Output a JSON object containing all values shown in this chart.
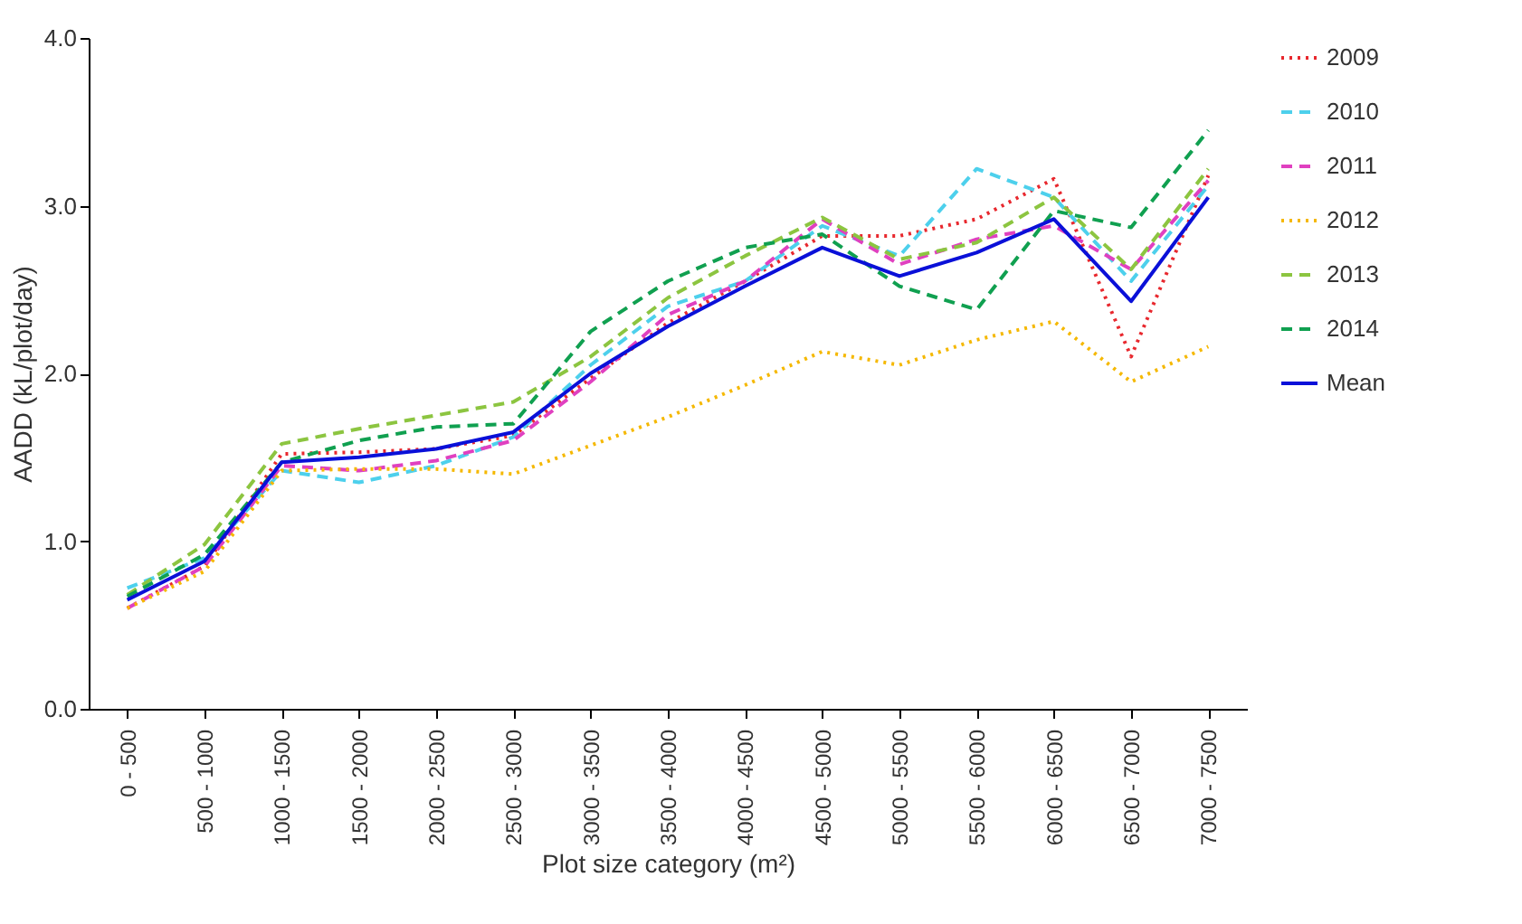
{
  "chart_data": {
    "type": "line",
    "xlabel": "Plot size category (m²)",
    "ylabel": "AADD (kL/plot/day)",
    "categories": [
      "0 - 500",
      "500 - 1000",
      "1000 - 1500",
      "1500 - 2000",
      "2000 - 2500",
      "2500 - 3000",
      "3000 - 3500",
      "3500 - 4000",
      "4000 - 4500",
      "4500 - 5000",
      "5000 - 5500",
      "5500 - 6000",
      "6000 - 6500",
      "6500 - 7000",
      "7000 - 7500"
    ],
    "series": [
      {
        "name": "2009",
        "color": "#e8282e",
        "line_style": "dotted",
        "values": [
          0.6,
          0.85,
          1.52,
          1.53,
          1.55,
          1.63,
          1.97,
          2.3,
          2.55,
          2.82,
          2.82,
          2.92,
          3.16,
          2.1,
          3.18
        ]
      },
      {
        "name": "2010",
        "color": "#4dd0ec",
        "line_style": "dashed",
        "values": [
          0.72,
          0.9,
          1.42,
          1.35,
          1.45,
          1.62,
          2.05,
          2.4,
          2.55,
          2.88,
          2.7,
          3.22,
          3.05,
          2.55,
          3.12
        ]
      },
      {
        "name": "2011",
        "color": "#e040c0",
        "line_style": "dashed",
        "values": [
          0.6,
          0.85,
          1.45,
          1.42,
          1.48,
          1.6,
          1.95,
          2.35,
          2.55,
          2.92,
          2.65,
          2.8,
          2.88,
          2.62,
          3.15
        ]
      },
      {
        "name": "2012",
        "color": "#f5b800",
        "line_style": "dotted",
        "values": [
          0.6,
          0.82,
          1.42,
          1.43,
          1.43,
          1.4,
          1.57,
          1.74,
          1.93,
          2.13,
          2.05,
          2.2,
          2.31,
          1.95,
          2.16
        ]
      },
      {
        "name": "2013",
        "color": "#8cc540",
        "line_style": "dashed",
        "values": [
          0.68,
          0.98,
          1.58,
          1.67,
          1.75,
          1.83,
          2.1,
          2.45,
          2.7,
          2.93,
          2.68,
          2.78,
          3.05,
          2.62,
          3.22
        ]
      },
      {
        "name": "2014",
        "color": "#10a050",
        "line_style": "dashed",
        "values": [
          0.67,
          0.92,
          1.47,
          1.6,
          1.68,
          1.7,
          2.25,
          2.55,
          2.75,
          2.83,
          2.52,
          2.38,
          2.97,
          2.87,
          3.45
        ]
      },
      {
        "name": "Mean",
        "color": "#0a10d8",
        "line_style": "solid",
        "values": [
          0.65,
          0.88,
          1.47,
          1.5,
          1.55,
          1.65,
          2.0,
          2.28,
          2.52,
          2.75,
          2.58,
          2.72,
          2.92,
          2.43,
          3.05
        ]
      }
    ],
    "ylim": [
      0,
      4
    ],
    "yticks": [
      {
        "value": 0,
        "label": "0.0"
      },
      {
        "value": 1,
        "label": "1.0"
      },
      {
        "value": 2,
        "label": "2.0"
      },
      {
        "value": 3,
        "label": "3.0"
      },
      {
        "value": 4,
        "label": "4.0"
      }
    ],
    "grid": false,
    "legend": "right",
    "marker": "none"
  }
}
